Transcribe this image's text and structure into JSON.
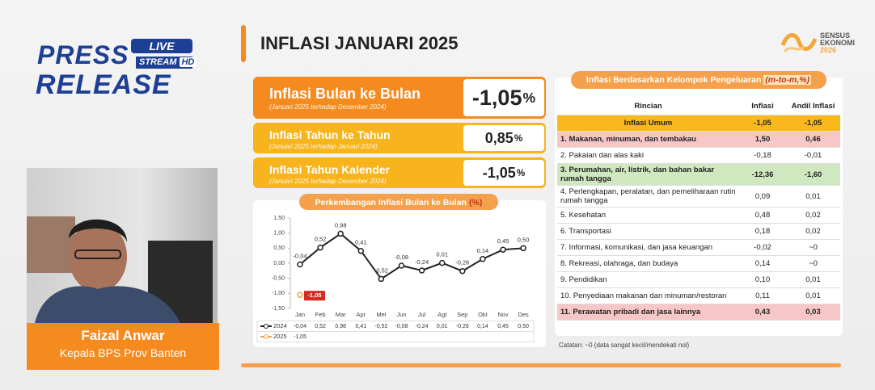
{
  "logo": {
    "press": "PRESS",
    "live": "LIVE",
    "stream": "STREAM",
    "hd": "HD",
    "release": "RELEASE"
  },
  "header": {
    "title": "INFLASI JANUARI 2025"
  },
  "sensus": {
    "line1": "SENSUS",
    "line2": "EKONOMI",
    "line3": "2026"
  },
  "cards": [
    {
      "title": "Inflasi Bulan ke Bulan",
      "subtitle": "(Januari 2025 terhadap Desember 2024)",
      "value": "-1,05",
      "unit": "%",
      "color": "#f58a1f"
    },
    {
      "title": "Inflasi Tahun ke Tahun",
      "subtitle": "(Januari 2025 terhadap Januari 2024)",
      "value": "0,85",
      "unit": "%",
      "color": "#f8b41c"
    },
    {
      "title": "Inflasi Tahun Kalender",
      "subtitle": "(Januari 2025 terhadap Desember 2024)",
      "value": "-1,05",
      "unit": "%",
      "color": "#f8b41c"
    }
  ],
  "chart": {
    "type": "line",
    "title": "Perkembangan Inflasi Bulan ke Bulan",
    "title_unit": "(%)",
    "categories": [
      "Jan",
      "Feb",
      "Mar",
      "Apr",
      "Mei",
      "Jun",
      "Jul",
      "Agt",
      "Sep",
      "Okt",
      "Nov",
      "Des"
    ],
    "series": [
      {
        "name": "2024",
        "color": "#222222",
        "values": [
          -0.04,
          0.52,
          0.98,
          0.41,
          -0.52,
          -0.08,
          -0.24,
          0.01,
          -0.26,
          0.14,
          0.45,
          0.5
        ],
        "value_labels": [
          "-0,04",
          "0,52",
          "0,98",
          "0,41",
          "-0,52",
          "-0,08",
          "-0,24",
          "0,01",
          "-0,26",
          "0,14",
          "0,45",
          "0,50"
        ]
      },
      {
        "name": "2025",
        "color": "#f5a04a",
        "values": [
          -1.05,
          null,
          null,
          null,
          null,
          null,
          null,
          null,
          null,
          null,
          null,
          null
        ],
        "value_labels": [
          "-1,05",
          null,
          null,
          null,
          null,
          null,
          null,
          null,
          null,
          null,
          null,
          null
        ]
      }
    ],
    "ylim": [
      -1.5,
      1.5
    ],
    "yticks": [
      {
        "value": 1.5,
        "label": "1,50"
      },
      {
        "value": 1,
        "label": "1,00"
      },
      {
        "value": 0.5,
        "label": "0,50"
      },
      {
        "value": 0,
        "label": "0,00"
      },
      {
        "value": -0.5,
        "label": "-0,50"
      },
      {
        "value": -1,
        "label": "-1,00"
      },
      {
        "value": -1.5,
        "label": "-1,50"
      }
    ]
  },
  "table": {
    "title": "Inflasi Berdasarkan Kelompok Pengeluaran",
    "title_unit": "(m-to-m,%)",
    "columns": [
      "Rincian",
      "Inflasi",
      "Andil Inflasi"
    ],
    "rows": [
      {
        "label": "Inflasi Umum",
        "inflasi": "-1,05",
        "andil": "-1,05",
        "color": "#f9b91c"
      },
      {
        "label": "1. Makanan, minuman, dan tembakau",
        "inflasi": "1,50",
        "andil": "0,46",
        "color": "#f7c6c6"
      },
      {
        "label": "2. Pakaian dan alas kaki",
        "inflasi": "-0,18",
        "andil": "-0,01"
      },
      {
        "label": "3. Perumahan, air, listrik, dan bahan bakar rumah tangga",
        "inflasi": "-12,36",
        "andil": "-1,60",
        "color": "#cfe8c0"
      },
      {
        "label": "4. Perlengkapan, peralatan, dan pemeliharaan rutin rumah tangga",
        "inflasi": "0,09",
        "andil": "0,01"
      },
      {
        "label": "5. Kesehatan",
        "inflasi": "0,48",
        "andil": "0,02"
      },
      {
        "label": "6. Transportasi",
        "inflasi": "0,18",
        "andil": "0,02"
      },
      {
        "label": "7. Informasi, komunikasi, dan jasa keuangan",
        "inflasi": "-0,02",
        "andil": "~0"
      },
      {
        "label": "8. Rekreasi, olahraga, dan budaya",
        "inflasi": "0,14",
        "andil": "~0"
      },
      {
        "label": "9. Pendidikan",
        "inflasi": "0,10",
        "andil": "0,01"
      },
      {
        "label": "10. Penyediaan makanan dan minuman/restoran",
        "inflasi": "0,11",
        "andil": "0,01"
      },
      {
        "label": "11. Perawatan pribadi dan jasa lainnya",
        "inflasi": "0,43",
        "andil": "0,03",
        "color": "#f7c6c6"
      }
    ],
    "note": "Catatan: ~0 (data sangat kecil/mendekati nol)"
  },
  "presenter": {
    "name": "Faizal Anwar",
    "role": "Kepala BPS Prov Banten"
  }
}
